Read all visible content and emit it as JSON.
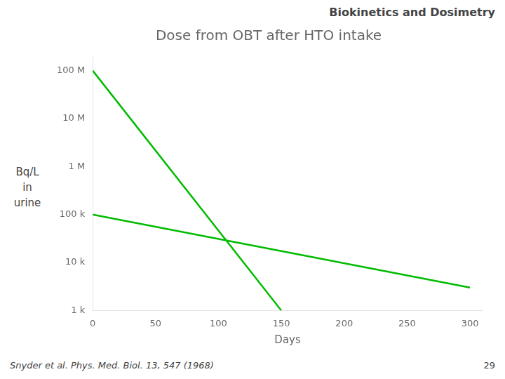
{
  "chart_data": {
    "type": "line",
    "title": "Dose from OBT after HTO intake",
    "xlabel": "Days",
    "ylabel": [
      "Bq/L",
      "in",
      "urine"
    ],
    "annotations": [
      "Biokinetics and Dosimetry",
      "Snyder  et al.  Phys. Med. Biol. 13, 547 (1968)",
      "29"
    ],
    "series": [
      {
        "color": "#00BB00",
        "x": [
          0,
          150
        ],
        "values": [
          100000000,
          1000
        ]
      },
      {
        "color": "#00BB00",
        "x": [
          0,
          300
        ],
        "values": [
          100000,
          3000
        ]
      }
    ],
    "log": "y",
    "xlim": [
      0,
      310
    ],
    "xticks": [
      0,
      50,
      100,
      150,
      200,
      250,
      300
    ],
    "ylim": [
      1000,
      200000000
    ],
    "yticks": [
      {
        "value": 1000,
        "label": "1 k"
      },
      {
        "value": 10000,
        "label": "10 k"
      },
      {
        "value": 100000,
        "label": "100 k"
      },
      {
        "value": 1000000,
        "label": "1 M"
      },
      {
        "value": 10000000,
        "label": "10 M"
      },
      {
        "value": 100000000,
        "label": "100 M"
      }
    ],
    "grid": false,
    "marker": "none"
  }
}
